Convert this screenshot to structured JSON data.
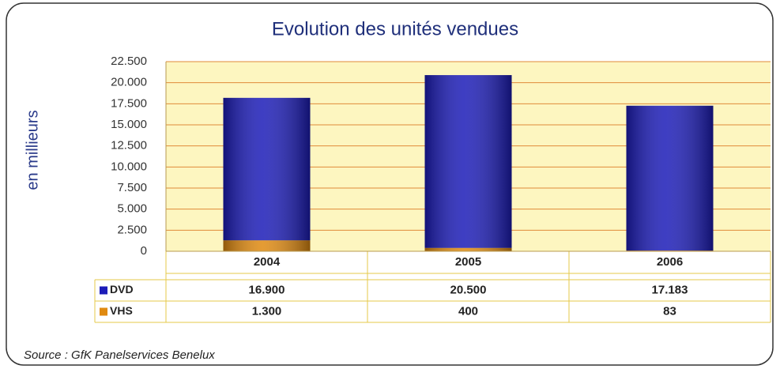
{
  "chart_data": {
    "type": "stacked_bar",
    "title": "Evolution des unités vendues",
    "y_label": "en millieurs",
    "source": "Source : GfK Panelservices Benelux",
    "categories": [
      "2004",
      "2005",
      "2006"
    ],
    "series": [
      {
        "name": "VHS",
        "color": "#e08a10",
        "values": [
          1300,
          400,
          83
        ],
        "value_labels": [
          "1.300",
          "400",
          "83"
        ]
      },
      {
        "name": "DVD",
        "color": "#1c1cb8",
        "values": [
          16900,
          20500,
          17183
        ],
        "value_labels": [
          "16.900",
          "20.500",
          "17.183"
        ]
      }
    ],
    "ylim": [
      0,
      22500
    ],
    "yticks": [
      0,
      {
        "value": 2500,
        "label": "2.500"
      },
      {
        "value": 5000,
        "label": "5.000"
      },
      {
        "value": 7500,
        "label": "7.500"
      },
      {
        "value": 10000,
        "label": "10.000"
      },
      {
        "value": 12500,
        "label": "12.500"
      },
      {
        "value": 15000,
        "label": "15.000"
      },
      {
        "value": 17500,
        "label": "17.500"
      },
      {
        "value": 20000,
        "label": "20.000"
      },
      {
        "value": 22500,
        "label": "22.500"
      }
    ],
    "grid": true
  }
}
